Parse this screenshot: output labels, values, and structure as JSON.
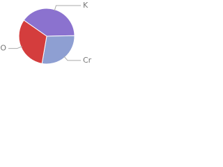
{
  "chart_data": {
    "type": "pie",
    "categories": [
      "K",
      "Cr",
      "O"
    ],
    "values": [
      40,
      28,
      32
    ],
    "colors": [
      "#8b72cf",
      "#8e9fd2",
      "#d43d3d"
    ]
  }
}
